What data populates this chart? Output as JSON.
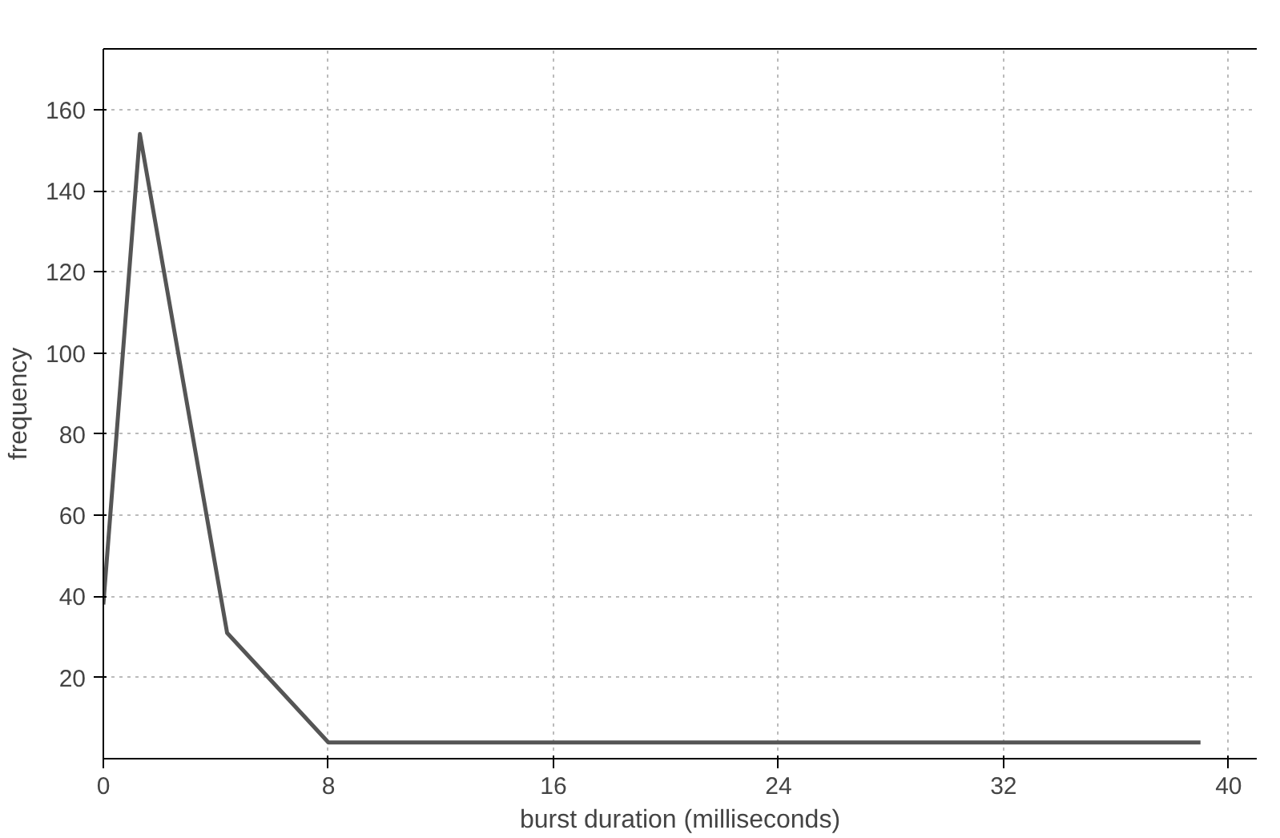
{
  "chart_data": {
    "type": "line",
    "xlabel": "burst duration (milliseconds)",
    "ylabel": "frequency",
    "x": [
      0,
      1.3,
      4.4,
      8,
      39
    ],
    "series": [
      {
        "color": "#555555",
        "values": [
          38,
          154,
          31,
          4,
          4
        ]
      }
    ],
    "xlim": [
      0,
      41
    ],
    "ylim": [
      0,
      175
    ],
    "xticks": [
      0,
      8,
      16,
      24,
      32,
      40
    ],
    "yticks": [
      20,
      40,
      60,
      80,
      100,
      120,
      140,
      160
    ],
    "grid": true,
    "marker": "none",
    "line_style": "solid"
  }
}
